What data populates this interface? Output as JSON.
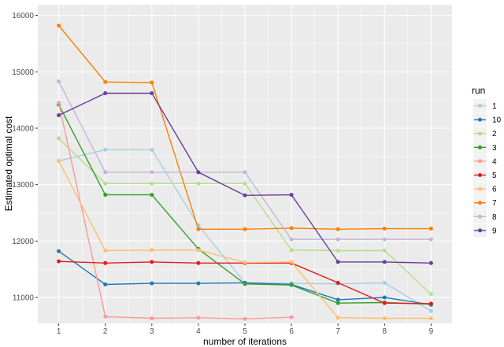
{
  "chart_data": {
    "type": "line",
    "title": "",
    "xlabel": "number of iterations",
    "ylabel": "Estimated optimal cost",
    "x": [
      1,
      2,
      3,
      4,
      5,
      6,
      7,
      8,
      9
    ],
    "x_ticks": [
      "1",
      "2",
      "3",
      "4",
      "5",
      "6",
      "7",
      "8",
      "9"
    ],
    "y_ticks": [
      11000,
      12000,
      13000,
      14000,
      15000,
      16000
    ],
    "y_tick_labels": [
      "11000",
      "12000",
      "13000",
      "14000",
      "15000",
      "16000"
    ],
    "xlim": [
      0.55,
      9.45
    ],
    "ylim": [
      10540,
      16190
    ],
    "grid": true,
    "background": "#ebebeb",
    "legend": {
      "title": "run",
      "position": "right"
    },
    "series": [
      {
        "name": "1",
        "color": "#a6cee3",
        "values": [
          13420,
          13620,
          13620,
          12280,
          11260,
          11250,
          11240,
          11260,
          10760
        ]
      },
      {
        "name": "10",
        "color": "#1f78b4",
        "values": [
          11820,
          11230,
          11250,
          11250,
          11260,
          11230,
          10960,
          11000,
          10870
        ]
      },
      {
        "name": "2",
        "color": "#b2df8a",
        "values": [
          13820,
          13020,
          13020,
          13020,
          13020,
          11840,
          11830,
          11830,
          11060
        ]
      },
      {
        "name": "3",
        "color": "#33a02c",
        "values": [
          14420,
          12820,
          12820,
          11860,
          11240,
          11220,
          10900,
          10910,
          10880
        ]
      },
      {
        "name": "4",
        "color": "#fb9a99",
        "values": [
          14450,
          10660,
          10630,
          10640,
          10620,
          10650,
          null,
          null,
          null
        ]
      },
      {
        "name": "5",
        "color": "#e31a1c",
        "values": [
          11640,
          11610,
          11630,
          11610,
          11610,
          11610,
          11260,
          10900,
          10890
        ]
      },
      {
        "name": "6",
        "color": "#fdbf6f",
        "values": [
          13420,
          11830,
          11840,
          11840,
          11620,
          11630,
          10640,
          10630,
          10630
        ]
      },
      {
        "name": "7",
        "color": "#ff7f00",
        "values": [
          15820,
          14820,
          14810,
          12210,
          12210,
          12230,
          12210,
          12220,
          12220
        ]
      },
      {
        "name": "8",
        "color": "#cab2d6",
        "values": [
          14830,
          13220,
          13220,
          13220,
          13220,
          12030,
          12030,
          12030,
          12030
        ]
      },
      {
        "name": "9",
        "color": "#6a3d9a",
        "values": [
          14230,
          14620,
          14620,
          13220,
          12810,
          12820,
          11630,
          11630,
          11610
        ]
      }
    ]
  }
}
